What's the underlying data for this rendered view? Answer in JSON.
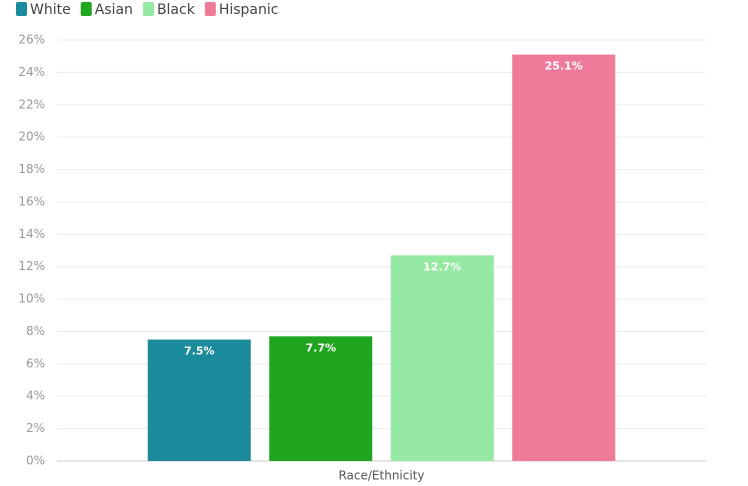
{
  "chart_data": {
    "type": "bar",
    "categories": [
      "Race/Ethnicity"
    ],
    "series": [
      {
        "name": "White",
        "color": "#1b8a9a",
        "values": [
          7.5
        ],
        "value_labels": [
          "7.5%"
        ]
      },
      {
        "name": "Asian",
        "color": "#1fa51f",
        "values": [
          7.7
        ],
        "value_labels": [
          "7.7%"
        ]
      },
      {
        "name": "Black",
        "color": "#95e9a2",
        "values": [
          12.7
        ],
        "value_labels": [
          "12.7%"
        ]
      },
      {
        "name": "Hispanic",
        "color": "#ee7b9a",
        "values": [
          25.1
        ],
        "value_labels": [
          "25.1%"
        ]
      }
    ],
    "ylim": [
      0,
      26
    ],
    "yticks": [
      {
        "value": 0,
        "label": "0%"
      },
      {
        "value": 2,
        "label": "2%"
      },
      {
        "value": 4,
        "label": "4%"
      },
      {
        "value": 6,
        "label": "6%"
      },
      {
        "value": 8,
        "label": "8%"
      },
      {
        "value": 10,
        "label": "10%"
      },
      {
        "value": 12,
        "label": "12%"
      },
      {
        "value": 14,
        "label": "14%"
      },
      {
        "value": 16,
        "label": "16%"
      },
      {
        "value": 18,
        "label": "18%"
      },
      {
        "value": 20,
        "label": "20%"
      },
      {
        "value": 22,
        "label": "22%"
      },
      {
        "value": 24,
        "label": "24%"
      },
      {
        "value": 26,
        "label": "26%"
      }
    ],
    "grid": true,
    "legend": "top-left"
  }
}
